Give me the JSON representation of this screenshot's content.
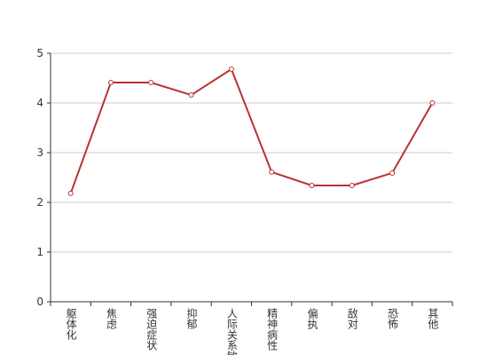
{
  "chart_data": {
    "type": "line",
    "categories": [
      "躯体化",
      "焦虑",
      "强迫症状",
      "抑郁",
      "人际关系敏感",
      "精神病性",
      "偏执",
      "敌对",
      "恐怖",
      "其他"
    ],
    "values": [
      2.18,
      4.41,
      4.41,
      4.16,
      4.68,
      2.61,
      2.34,
      2.34,
      2.59,
      4.0
    ],
    "color": "#b83232",
    "ylim": [
      0,
      5
    ],
    "yticks": [
      0,
      1,
      2,
      3,
      4,
      5
    ],
    "grid": true
  }
}
